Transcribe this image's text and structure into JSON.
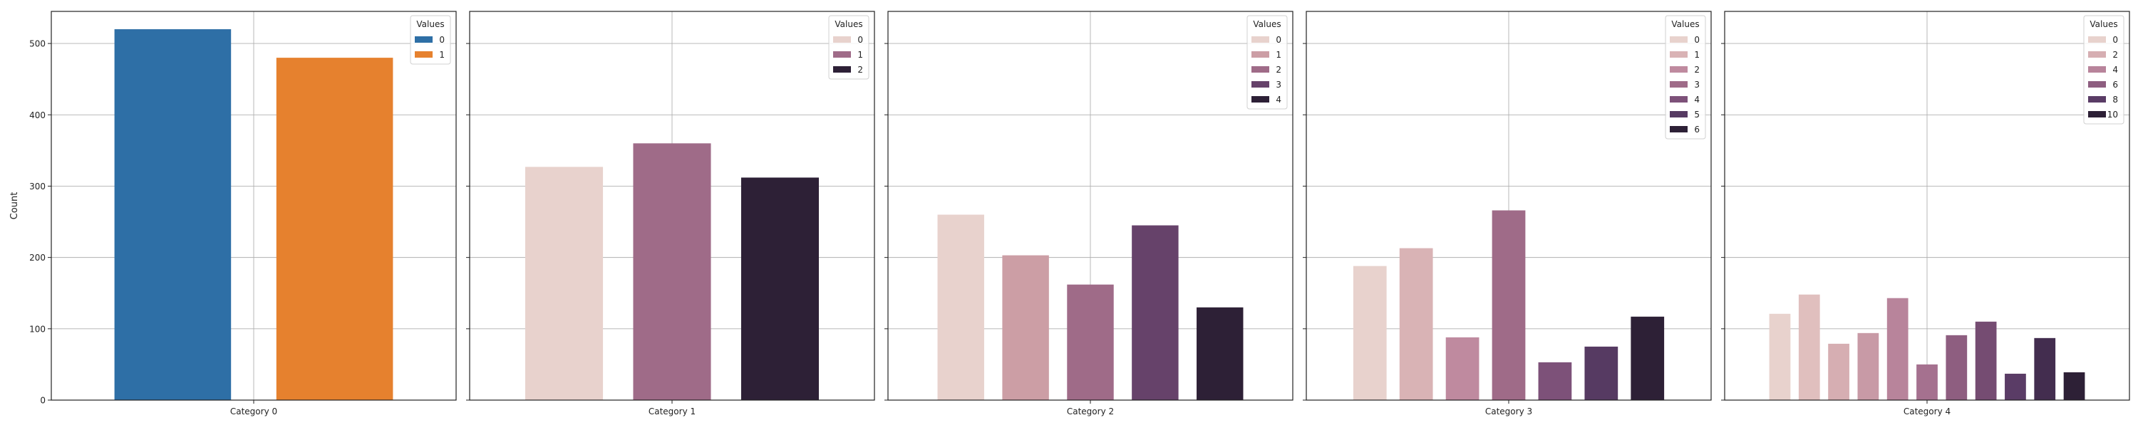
{
  "chart_data": {
    "type": "bar",
    "ylabel": "Count",
    "ylim": [
      0,
      545
    ],
    "yticks": [
      0,
      100,
      200,
      300,
      400,
      500
    ],
    "grid": true,
    "legend_title": "Values",
    "legend_placement": "top-right",
    "subplots": [
      {
        "category": "Category 0",
        "legend_entries": [
          "0",
          "1"
        ],
        "legend_colors": [
          "#2e6fa6",
          "#e6812e"
        ],
        "bars": [
          {
            "value": "0",
            "count": 520,
            "color": "#2e6fa6"
          },
          {
            "value": "1",
            "count": 480,
            "color": "#e6812e"
          }
        ]
      },
      {
        "category": "Category 1",
        "legend_entries": [
          "0",
          "1",
          "2"
        ],
        "legend_colors": [
          "#e8d2cd",
          "#9f6b88",
          "#2d2036"
        ],
        "bars": [
          {
            "value": "0",
            "count": 327,
            "color": "#e8d2cd"
          },
          {
            "value": "1",
            "count": 360,
            "color": "#9f6b88"
          },
          {
            "value": "2",
            "count": 312,
            "color": "#2d2036"
          }
        ]
      },
      {
        "category": "Category 2",
        "legend_entries": [
          "0",
          "1",
          "2",
          "3",
          "4"
        ],
        "legend_colors": [
          "#e8d2cd",
          "#cc9ea5",
          "#9f6b88",
          "#66426a",
          "#2d2036"
        ],
        "bars": [
          {
            "value": "0",
            "count": 260,
            "color": "#e8d2cd"
          },
          {
            "value": "1",
            "count": 203,
            "color": "#cc9ea5"
          },
          {
            "value": "2",
            "count": 162,
            "color": "#9f6b88"
          },
          {
            "value": "3",
            "count": 245,
            "color": "#66426a"
          },
          {
            "value": "4",
            "count": 130,
            "color": "#2d2036"
          }
        ]
      },
      {
        "category": "Category 3",
        "legend_entries": [
          "0",
          "1",
          "2",
          "3",
          "4",
          "5",
          "6"
        ],
        "legend_colors": [
          "#e8d2cd",
          "#d9b3b5",
          "#bf8a9f",
          "#9f6b88",
          "#7d5179",
          "#563a62",
          "#2d2036"
        ],
        "bars": [
          {
            "value": "0",
            "count": 188,
            "color": "#e8d2cd"
          },
          {
            "value": "1",
            "count": 213,
            "color": "#d9b3b5"
          },
          {
            "value": "2",
            "count": 88,
            "color": "#bf8a9f"
          },
          {
            "value": "3",
            "count": 266,
            "color": "#9f6b88"
          },
          {
            "value": "4",
            "count": 53,
            "color": "#7d5179"
          },
          {
            "value": "5",
            "count": 75,
            "color": "#563a62"
          },
          {
            "value": "6",
            "count": 117,
            "color": "#2d2036"
          }
        ]
      },
      {
        "category": "Category 4",
        "legend_entries": [
          "0",
          "2",
          "4",
          "6",
          "8",
          "10"
        ],
        "legend_colors": [
          "#e8d2cd",
          "#d6aeb2",
          "#b8849b",
          "#8e5e80",
          "#5a3c66",
          "#2d2036"
        ],
        "bars": [
          {
            "value": "0",
            "count": 121,
            "color": "#e8d2cd"
          },
          {
            "value": "1",
            "count": 148,
            "color": "#e0bfbe"
          },
          {
            "value": "2",
            "count": 79,
            "color": "#d6aeb2"
          },
          {
            "value": "3",
            "count": 94,
            "color": "#c89aa6"
          },
          {
            "value": "4",
            "count": 143,
            "color": "#b8849b"
          },
          {
            "value": "5",
            "count": 50,
            "color": "#a5718f"
          },
          {
            "value": "6",
            "count": 91,
            "color": "#8e5e80"
          },
          {
            "value": "7",
            "count": 110,
            "color": "#754c72"
          },
          {
            "value": "8",
            "count": 37,
            "color": "#5a3c66"
          },
          {
            "value": "9",
            "count": 87,
            "color": "#432d4f"
          },
          {
            "value": "10",
            "count": 39,
            "color": "#2d2036"
          }
        ]
      }
    ]
  }
}
